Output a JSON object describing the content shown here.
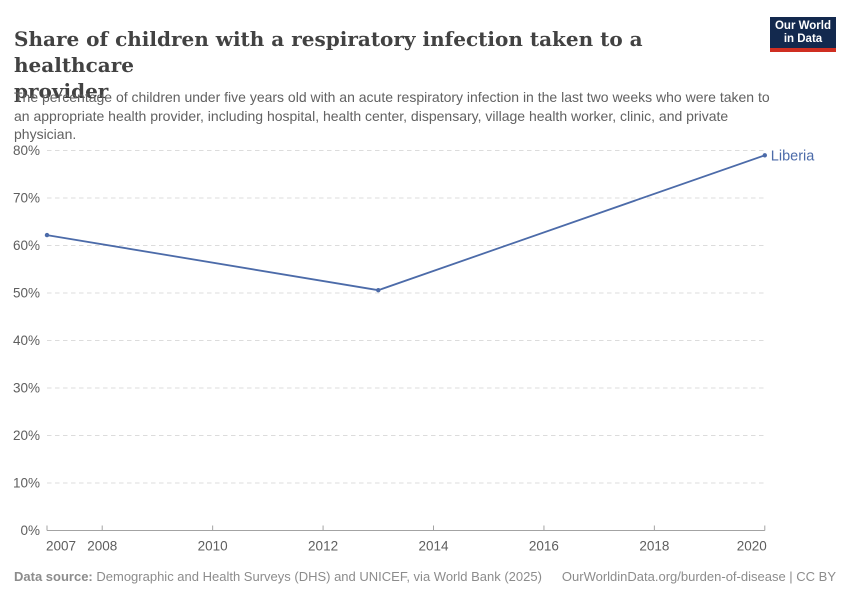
{
  "header": {
    "title": "Share of children with a respiratory infection taken to a healthcare provider",
    "title_lines": [
      "Share of children with a respiratory infection taken to a healthcare",
      "provider"
    ],
    "subtitle_lines": [
      "The percentage of children under five years old with an acute respiratory infection in the last two weeks who were taken to",
      "an appropriate health provider, including hospital, health center, dispensary, village health worker, clinic, and private",
      "physician."
    ],
    "logo": {
      "line1": "Our World",
      "line2": "in Data",
      "bg_color": "#13294e",
      "accent_color": "#cf2e21"
    }
  },
  "chart_data": {
    "type": "line",
    "title": "Share of children with a respiratory infection taken to a healthcare provider",
    "xlabel": "",
    "ylabel": "",
    "xlim": [
      2007,
      2020
    ],
    "ylim": [
      0,
      80
    ],
    "grid": "horizontal-dashed",
    "legend_position": "end-of-line-label",
    "x_ticks": [
      2007,
      2008,
      2010,
      2012,
      2014,
      2016,
      2018,
      2020
    ],
    "y_tick_labels": [
      "0%",
      "10%",
      "20%",
      "30%",
      "40%",
      "50%",
      "60%",
      "70%",
      "80%"
    ],
    "series": [
      {
        "name": "Liberia",
        "color": "#4c6ba9",
        "points": [
          {
            "year": 2007,
            "value": 62.2
          },
          {
            "year": 2013,
            "value": 50.6
          },
          {
            "year": 2020,
            "value": 79
          }
        ]
      }
    ]
  },
  "footer": {
    "datasource_label": "Data source:",
    "datasource_text": "Demographic and Health Surveys (DHS) and UNICEF, via World Bank (2025)",
    "license_text": "OurWorldinData.org/burden-of-disease | CC BY"
  }
}
